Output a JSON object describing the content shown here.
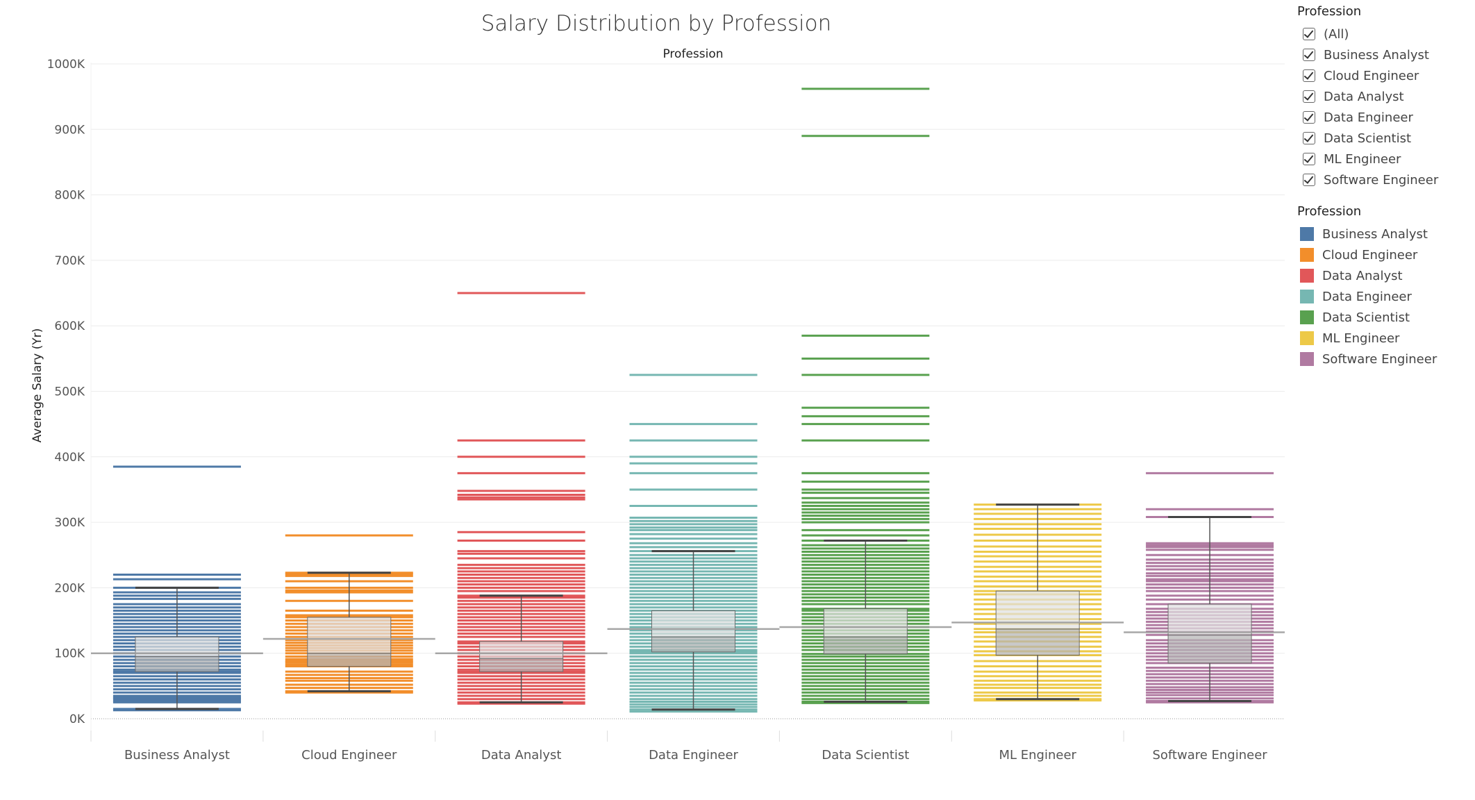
{
  "chart_data": {
    "type": "box",
    "title": "Salary Distribution by Profession",
    "column_header": "Profession",
    "ylabel": "Average Salary (Yr)",
    "xlabel": "",
    "ylim": [
      0,
      1000000
    ],
    "ytick_values": [
      0,
      100000,
      200000,
      300000,
      400000,
      500000,
      600000,
      700000,
      800000,
      900000,
      1000000
    ],
    "ytick_labels": [
      "0K",
      "100K",
      "200K",
      "300K",
      "400K",
      "500K",
      "600K",
      "700K",
      "800K",
      "900K",
      "1000K"
    ],
    "grid": true,
    "legend_position": "right",
    "categories": [
      "Business Analyst",
      "Cloud Engineer",
      "Data Analyst",
      "Data Engineer",
      "Data Scientist",
      "ML Engineer",
      "Software Engineer"
    ],
    "series": [
      {
        "name": "Business Analyst",
        "color": "#4e79a7",
        "average": 100000,
        "box": {
          "q1": 72000,
          "median": 95000,
          "q3": 125000,
          "whisker_low": 15000,
          "whisker_high": 200000
        },
        "values": [
          13000,
          15000,
          25000,
          27000,
          30000,
          31000,
          33000,
          35000,
          40000,
          45000,
          50000,
          55000,
          60000,
          65000,
          70000,
          72000,
          75000,
          80000,
          85000,
          90000,
          95000,
          100000,
          105000,
          110000,
          115000,
          120000,
          125000,
          130000,
          135000,
          140000,
          145000,
          150000,
          155000,
          160000,
          165000,
          170000,
          175000,
          183000,
          188000,
          193000,
          200000,
          213000,
          220000,
          385000
        ]
      },
      {
        "name": "Cloud Engineer",
        "color": "#f28e2b",
        "average": 122000,
        "box": {
          "q1": 80000,
          "median": 100000,
          "q3": 155000,
          "whisker_low": 42000,
          "whisker_high": 223000
        },
        "values": [
          40000,
          42000,
          47000,
          52000,
          58000,
          62000,
          67000,
          72000,
          80000,
          83000,
          86000,
          88000,
          91000,
          95000,
          100000,
          104000,
          108000,
          112000,
          116000,
          120000,
          125000,
          130000,
          135000,
          140000,
          145000,
          150000,
          155000,
          158000,
          165000,
          180000,
          193000,
          196000,
          200000,
          210000,
          218000,
          221000,
          223000,
          280000
        ]
      },
      {
        "name": "Data Analyst",
        "color": "#e15759",
        "average": 100000,
        "box": {
          "q1": 72000,
          "median": 92000,
          "q3": 118000,
          "whisker_low": 25000,
          "whisker_high": 188000
        },
        "values": [
          23000,
          25000,
          30000,
          35000,
          40000,
          45000,
          50000,
          55000,
          60000,
          65000,
          70000,
          72000,
          75000,
          80000,
          85000,
          90000,
          95000,
          100000,
          105000,
          110000,
          115000,
          118000,
          125000,
          130000,
          135000,
          140000,
          145000,
          150000,
          155000,
          160000,
          165000,
          170000,
          175000,
          180000,
          185000,
          188000,
          195000,
          200000,
          205000,
          210000,
          215000,
          220000,
          225000,
          230000,
          235000,
          245000,
          252000,
          256000,
          272000,
          285000,
          335000,
          338000,
          342000,
          348000,
          375000,
          400000,
          425000,
          650000
        ]
      },
      {
        "name": "Data Engineer",
        "color": "#76b7b2",
        "average": 137000,
        "box": {
          "q1": 102000,
          "median": 125000,
          "q3": 165000,
          "whisker_low": 14000,
          "whisker_high": 256000
        },
        "values": [
          11000,
          14000,
          18000,
          22000,
          26000,
          30000,
          35000,
          40000,
          45000,
          50000,
          55000,
          60000,
          65000,
          70000,
          75000,
          80000,
          85000,
          90000,
          95000,
          100000,
          102000,
          105000,
          110000,
          115000,
          120000,
          125000,
          130000,
          135000,
          140000,
          145000,
          150000,
          155000,
          160000,
          165000,
          170000,
          175000,
          180000,
          185000,
          190000,
          195000,
          200000,
          205000,
          210000,
          215000,
          220000,
          225000,
          230000,
          235000,
          240000,
          245000,
          250000,
          256000,
          262000,
          268000,
          275000,
          282000,
          288000,
          292000,
          297000,
          302000,
          307000,
          325000,
          350000,
          375000,
          390000,
          400000,
          425000,
          450000,
          525000
        ]
      },
      {
        "name": "Data Scientist",
        "color": "#59a14f",
        "average": 140000,
        "box": {
          "q1": 99000,
          "median": 125000,
          "q3": 168000,
          "whisker_low": 26000,
          "whisker_high": 272000
        },
        "values": [
          24000,
          26000,
          30000,
          35000,
          40000,
          45000,
          50000,
          55000,
          60000,
          65000,
          70000,
          75000,
          80000,
          85000,
          90000,
          95000,
          99000,
          105000,
          110000,
          115000,
          120000,
          125000,
          130000,
          135000,
          140000,
          145000,
          150000,
          155000,
          160000,
          165000,
          168000,
          175000,
          180000,
          185000,
          190000,
          195000,
          200000,
          205000,
          210000,
          215000,
          220000,
          225000,
          230000,
          235000,
          240000,
          245000,
          250000,
          255000,
          260000,
          265000,
          272000,
          280000,
          288000,
          300000,
          305000,
          310000,
          315000,
          320000,
          325000,
          330000,
          337000,
          345000,
          350000,
          362000,
          375000,
          425000,
          450000,
          462000,
          475000,
          525000,
          550000,
          585000,
          890000,
          962000
        ]
      },
      {
        "name": "ML Engineer",
        "color": "#edc948",
        "average": 147000,
        "box": {
          "q1": 97000,
          "median": 137000,
          "q3": 195000,
          "whisker_low": 30000,
          "whisker_high": 327000
        },
        "values": [
          28000,
          30000,
          35000,
          40000,
          47000,
          52000,
          58000,
          65000,
          72000,
          80000,
          88000,
          97000,
          103000,
          110000,
          118000,
          125000,
          132000,
          137000,
          145000,
          152000,
          160000,
          167000,
          175000,
          182000,
          190000,
          195000,
          202000,
          210000,
          217000,
          225000,
          232000,
          240000,
          248000,
          255000,
          263000,
          272000,
          281000,
          290000,
          297000,
          305000,
          313000,
          320000,
          327000
        ]
      },
      {
        "name": "Software Engineer",
        "color": "#b07aa1",
        "average": 132000,
        "box": {
          "q1": 85000,
          "median": 128000,
          "q3": 175000,
          "whisker_low": 27000,
          "whisker_high": 308000
        },
        "values": [
          25000,
          27000,
          31000,
          36000,
          40000,
          44000,
          48000,
          53000,
          58000,
          63000,
          68000,
          73000,
          78000,
          85000,
          90000,
          95000,
          100000,
          105000,
          110000,
          115000,
          120000,
          128000,
          133000,
          138000,
          143000,
          148000,
          153000,
          158000,
          163000,
          168000,
          175000,
          182000,
          188000,
          195000,
          200000,
          205000,
          210000,
          213000,
          218000,
          222000,
          228000,
          233000,
          238000,
          243000,
          250000,
          258000,
          262000,
          265000,
          268000,
          308000,
          320000,
          375000
        ]
      }
    ]
  },
  "filter": {
    "title": "Profession",
    "items": [
      {
        "label": "(All)",
        "checked": true
      },
      {
        "label": "Business Analyst",
        "checked": true
      },
      {
        "label": "Cloud Engineer",
        "checked": true
      },
      {
        "label": "Data Analyst",
        "checked": true
      },
      {
        "label": "Data Engineer",
        "checked": true
      },
      {
        "label": "Data Scientist",
        "checked": true
      },
      {
        "label": "ML Engineer",
        "checked": true
      },
      {
        "label": "Software Engineer",
        "checked": true
      }
    ]
  },
  "legend": {
    "title": "Profession",
    "items": [
      {
        "label": "Business Analyst",
        "color": "#4e79a7"
      },
      {
        "label": "Cloud Engineer",
        "color": "#f28e2b"
      },
      {
        "label": "Data Analyst",
        "color": "#e15759"
      },
      {
        "label": "Data Engineer",
        "color": "#76b7b2"
      },
      {
        "label": "Data Scientist",
        "color": "#59a14f"
      },
      {
        "label": "ML Engineer",
        "color": "#edc948"
      },
      {
        "label": "Software Engineer",
        "color": "#b07aa1"
      }
    ]
  }
}
